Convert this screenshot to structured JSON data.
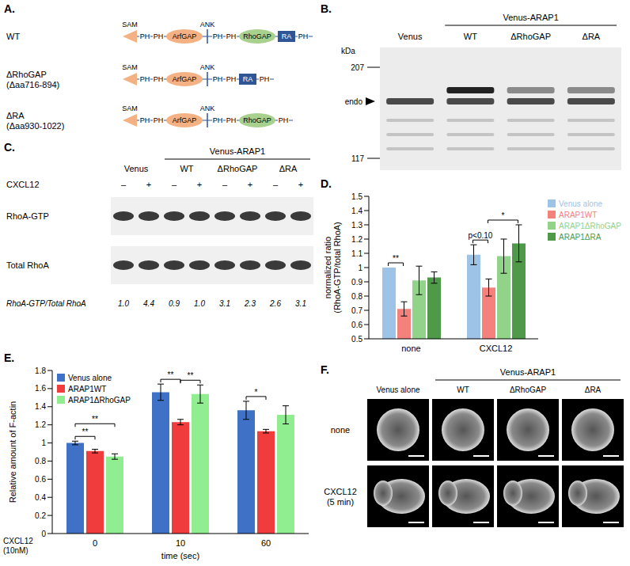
{
  "panel_A": {
    "label": "A.",
    "constructs": [
      {
        "name": "WT",
        "domains": [
          "SAM",
          "PH",
          "PH",
          "ArfGAP",
          "ANK",
          "PH",
          "PH",
          "RhoGAP",
          "RA",
          "PH"
        ]
      },
      {
        "name": "ΔRhoGAP (Δaa716-894)",
        "domains": [
          "SAM",
          "PH",
          "PH",
          "ArfGAP",
          "ANK",
          "PH",
          "PH",
          "RA",
          "PH"
        ]
      },
      {
        "name": "ΔRA (Δaa930-1022)",
        "domains": [
          "SAM",
          "PH",
          "PH",
          "ArfGAP",
          "ANK",
          "PH",
          "PH",
          "RhoGAP",
          "PH"
        ]
      }
    ]
  },
  "panel_B": {
    "label": "B.",
    "unit": "kDa",
    "markers": [
      207,
      117
    ],
    "band_label": "endo",
    "lanes": [
      {
        "name": "Venus"
      },
      {
        "name": "WT",
        "group": "Venus-ARAP1"
      },
      {
        "name": "ΔRhoGAP",
        "group": "Venus-ARAP1"
      },
      {
        "name": "ΔRA",
        "group": "Venus-ARAP1"
      }
    ]
  },
  "panel_C": {
    "label": "C.",
    "treatment": "CXCL12",
    "treatment_states": [
      "–",
      "+"
    ],
    "lanes": [
      {
        "name": "Venus"
      },
      {
        "name": "WT",
        "group": "Venus-ARAP1"
      },
      {
        "name": "ΔRhoGAP",
        "group": "Venus-ARAP1"
      },
      {
        "name": "ΔRA",
        "group": "Venus-ARAP1"
      }
    ],
    "blots": [
      "RhoA-GTP",
      "Total RhoA"
    ],
    "ratio_label": "RhoA-GTP/Total RhoA",
    "ratios": [
      "1.0",
      "4.4",
      "0.9",
      "1.0",
      "3.1",
      "2.3",
      "2.6",
      "3.1"
    ]
  },
  "chart_data": [
    {
      "type": "bar",
      "panel": "D.",
      "categories": [
        "none",
        "CXCL12"
      ],
      "series": [
        {
          "name": "Venus alone",
          "color": "#9DC3E6",
          "values": [
            1.0,
            1.09
          ],
          "errors": [
            0,
            0.07
          ]
        },
        {
          "name": "ARAP1WT",
          "color": "#F4817C",
          "values": [
            0.71,
            0.86
          ],
          "errors": [
            0.05,
            0.06
          ]
        },
        {
          "name": "ARAP1ΔRhoGAP",
          "color": "#92D38A",
          "values": [
            0.91,
            1.08
          ],
          "errors": [
            0.1,
            0.12
          ]
        },
        {
          "name": "ARAP1ΔRA",
          "color": "#4E9A48",
          "values": [
            0.93,
            1.17
          ],
          "errors": [
            0.04,
            0.13
          ]
        }
      ],
      "ylim": [
        0.5,
        1.5
      ],
      "yticks": [
        0.5,
        0.6,
        0.7,
        0.8,
        0.9,
        1,
        1.1,
        1.2,
        1.3,
        1.4,
        1.5
      ],
      "ylabel": "normalized ratio (RhoA-GTP/total RhoA)",
      "legend": "right",
      "grid": false,
      "annotations": [
        {
          "text": "**",
          "category": "none",
          "from": "Venus alone",
          "to": "ARAP1WT"
        },
        {
          "text": "p<0.10",
          "category": "CXCL12",
          "from": "Venus alone",
          "to": "ARAP1WT"
        },
        {
          "text": "*",
          "category": "CXCL12",
          "from": "ARAP1WT",
          "to": "ARAP1ΔRA"
        }
      ]
    },
    {
      "type": "bar",
      "panel": "E.",
      "categories": [
        "0",
        "10",
        "60"
      ],
      "series": [
        {
          "name": "Venus alone",
          "color": "#3F72C6",
          "values": [
            1.0,
            1.56,
            1.36
          ],
          "errors": [
            0.02,
            0.09,
            0.1
          ]
        },
        {
          "name": "ARAP1WT",
          "color": "#F03C3C",
          "values": [
            0.91,
            1.23,
            1.13
          ],
          "errors": [
            0.02,
            0.03,
            0.02
          ]
        },
        {
          "name": "ARAP1ΔRhoGAP",
          "color": "#90EE90",
          "values": [
            0.85,
            1.54,
            1.31
          ],
          "errors": [
            0.03,
            0.1,
            0.1
          ]
        }
      ],
      "ylim": [
        0,
        1.8
      ],
      "yticks": [
        0,
        0.2,
        0.4,
        0.6,
        0.8,
        1,
        1.2,
        1.4,
        1.6,
        1.8
      ],
      "ylabel": "Relative amount of F-actin",
      "xlabel": "time (sec)",
      "condition_label": "CXCL12 (10nM)",
      "legend": "upper left",
      "grid": false,
      "annotations": [
        {
          "text": "**",
          "category": "0",
          "from": "Venus alone",
          "to": "ARAP1WT"
        },
        {
          "text": "**",
          "category": "0",
          "from": "Venus alone",
          "to": "ARAP1ΔRhoGAP"
        },
        {
          "text": "**",
          "category": "10",
          "from": "Venus alone",
          "to": "ARAP1WT"
        },
        {
          "text": "**",
          "category": "10",
          "from": "ARAP1WT",
          "to": "ARAP1ΔRhoGAP"
        },
        {
          "text": "*",
          "category": "60",
          "from": "Venus alone",
          "to": "ARAP1WT"
        }
      ]
    }
  ],
  "panel_F": {
    "label": "F.",
    "columns": [
      {
        "name": "Venus alone"
      },
      {
        "name": "WT",
        "group": "Venus-ARAP1"
      },
      {
        "name": "ΔRhoGAP",
        "group": "Venus-ARAP1"
      },
      {
        "name": "ΔRA",
        "group": "Venus-ARAP1"
      }
    ],
    "rows": [
      "none",
      "CXCL12 (5 min)"
    ]
  }
}
